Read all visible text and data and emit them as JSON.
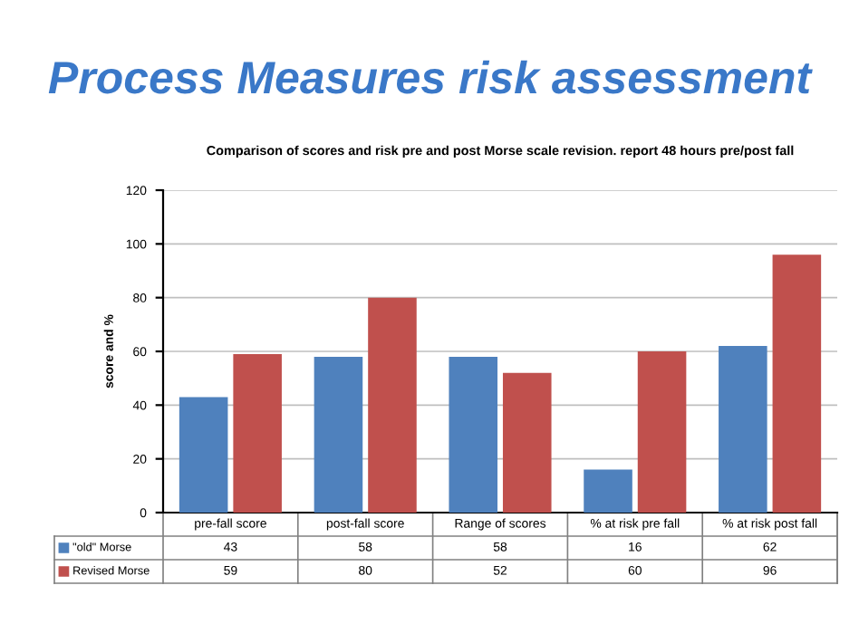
{
  "chart_data": {
    "type": "bar",
    "title": "Process Measures risk assessment",
    "subtitle": "Comparison of scores and risk pre and post Morse scale revision. report 48 hours pre/post fall",
    "ylabel": "score and %",
    "categories": [
      "pre-fall score",
      "post-fall score",
      "Range of scores",
      "% at risk pre fall",
      "% at risk post fall"
    ],
    "series": [
      {
        "name": "\"old\" Morse",
        "color": "#4f81bd",
        "values": [
          43,
          58,
          58,
          16,
          62
        ]
      },
      {
        "name": "Revised Morse",
        "color": "#c0504d",
        "values": [
          59,
          80,
          52,
          60,
          96
        ]
      }
    ],
    "ylim": [
      0,
      120
    ],
    "yticks": [
      0,
      20,
      40,
      60,
      80,
      100,
      120
    ],
    "grid": "y",
    "data_labels": true,
    "legend": "bottom"
  }
}
